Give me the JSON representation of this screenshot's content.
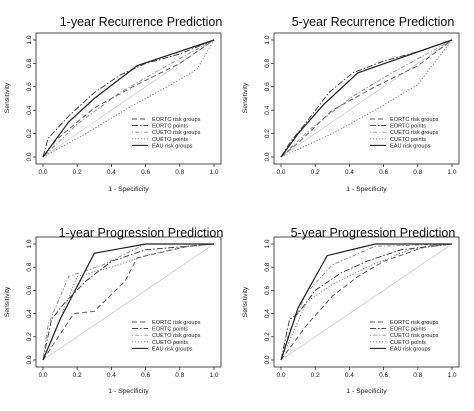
{
  "chart_data": [
    {
      "type": "line",
      "title": "1-year Recurrence Prediction",
      "xlabel": "1 - Specificity",
      "ylabel": "Sensitivity",
      "xlim": [
        0,
        1
      ],
      "ylim": [
        0,
        1
      ],
      "ticks": [
        "0.0",
        "0.2",
        "0.4",
        "0.6",
        "0.8",
        "1.0"
      ],
      "legend_position": "bottom-right",
      "diagonal_reference": true,
      "series": [
        {
          "name": "EORTC risk groups",
          "style": "dashed",
          "x": [
            0,
            0.08,
            0.3,
            0.55,
            0.8,
            1.0
          ],
          "y": [
            0,
            0.15,
            0.42,
            0.62,
            0.8,
            1.0
          ]
        },
        {
          "name": "EORTC points",
          "style": "dashdot",
          "x": [
            0,
            0.03,
            0.15,
            0.3,
            0.45,
            0.6,
            0.8,
            1.0
          ],
          "y": [
            0,
            0.16,
            0.35,
            0.55,
            0.7,
            0.8,
            0.88,
            1.0
          ]
        },
        {
          "name": "CUETO risk groups",
          "style": "dotdash",
          "x": [
            0,
            0.2,
            0.45,
            0.65,
            0.85,
            1.0
          ],
          "y": [
            0,
            0.28,
            0.55,
            0.72,
            0.88,
            1.0
          ]
        },
        {
          "name": "CUETO points",
          "style": "dotted",
          "x": [
            0,
            0.25,
            0.5,
            0.75,
            0.9,
            1.0
          ],
          "y": [
            0,
            0.2,
            0.42,
            0.62,
            0.75,
            1.0
          ]
        },
        {
          "name": "EAU risk groups",
          "style": "solid",
          "x": [
            0,
            0.15,
            0.3,
            0.55,
            1.0
          ],
          "y": [
            0,
            0.3,
            0.5,
            0.78,
            1.0
          ]
        }
      ]
    },
    {
      "type": "line",
      "title": "5-year Recurrence Prediction",
      "xlabel": "1 - Specificity",
      "ylabel": "Sensitivity",
      "xlim": [
        0,
        1
      ],
      "ylim": [
        0,
        1
      ],
      "ticks": [
        "0.0",
        "0.2",
        "0.4",
        "0.6",
        "0.8",
        "1.0"
      ],
      "legend_position": "bottom-right",
      "diagonal_reference": true,
      "series": [
        {
          "name": "EORTC risk groups",
          "style": "dashed",
          "x": [
            0,
            0.1,
            0.3,
            0.55,
            0.8,
            1.0
          ],
          "y": [
            0,
            0.12,
            0.4,
            0.6,
            0.78,
            1.0
          ]
        },
        {
          "name": "EORTC points",
          "style": "dashdot",
          "x": [
            0,
            0.05,
            0.15,
            0.28,
            0.42,
            0.6,
            0.8,
            1.0
          ],
          "y": [
            0,
            0.12,
            0.3,
            0.55,
            0.72,
            0.82,
            0.9,
            1.0
          ]
        },
        {
          "name": "CUETO risk groups",
          "style": "dotdash",
          "x": [
            0,
            0.18,
            0.42,
            0.65,
            0.85,
            1.0
          ],
          "y": [
            0,
            0.25,
            0.52,
            0.72,
            0.88,
            1.0
          ]
        },
        {
          "name": "CUETO points",
          "style": "dotted",
          "x": [
            0,
            0.3,
            0.55,
            0.8,
            1.0
          ],
          "y": [
            0,
            0.2,
            0.4,
            0.62,
            1.0
          ]
        },
        {
          "name": "EAU risk groups",
          "style": "solid",
          "x": [
            0,
            0.1,
            0.25,
            0.45,
            1.0
          ],
          "y": [
            0,
            0.2,
            0.45,
            0.72,
            1.0
          ]
        }
      ]
    },
    {
      "type": "line",
      "title": "1-year Progression Prediction",
      "xlabel": "1 - Specificity",
      "ylabel": "Sensitivity",
      "xlim": [
        0,
        1
      ],
      "ylim": [
        0,
        1
      ],
      "ticks": [
        "0.0",
        "0.2",
        "0.4",
        "0.6",
        "0.8",
        "1.0"
      ],
      "legend_position": "bottom-right",
      "diagonal_reference": true,
      "series": [
        {
          "name": "EORTC risk groups",
          "style": "dashed",
          "x": [
            0,
            0.18,
            0.3,
            0.48,
            0.55,
            0.85,
            1.0
          ],
          "y": [
            0,
            0.4,
            0.42,
            0.68,
            0.88,
            0.98,
            1.0
          ]
        },
        {
          "name": "EORTC points",
          "style": "dashdot",
          "x": [
            0,
            0.05,
            0.12,
            0.25,
            0.4,
            0.6,
            1.0
          ],
          "y": [
            0,
            0.35,
            0.48,
            0.68,
            0.85,
            0.95,
            1.0
          ]
        },
        {
          "name": "CUETO risk groups",
          "style": "dotdash",
          "x": [
            0,
            0.03,
            0.15,
            0.35,
            0.6,
            1.0
          ],
          "y": [
            0,
            0.3,
            0.72,
            0.82,
            1.0,
            1.0
          ]
        },
        {
          "name": "CUETO points",
          "style": "dotted",
          "x": [
            0,
            0.2,
            0.4,
            0.6,
            0.8,
            1.0
          ],
          "y": [
            0,
            0.72,
            0.8,
            0.9,
            0.97,
            1.0
          ]
        },
        {
          "name": "EAU risk groups",
          "style": "solid",
          "x": [
            0,
            0.1,
            0.3,
            0.6,
            1.0
          ],
          "y": [
            0,
            0.35,
            0.92,
            1.0,
            1.0
          ]
        }
      ]
    },
    {
      "type": "line",
      "title": "5-year Progression Prediction",
      "xlabel": "1 - Specificity",
      "ylabel": "Sensitivity",
      "xlim": [
        0,
        1
      ],
      "ylim": [
        0,
        1
      ],
      "ticks": [
        "0.0",
        "0.2",
        "0.4",
        "0.6",
        "0.8",
        "1.0"
      ],
      "legend_position": "bottom-right",
      "diagonal_reference": true,
      "series": [
        {
          "name": "EORTC risk groups",
          "style": "dashed",
          "x": [
            0,
            0.15,
            0.3,
            0.45,
            0.6,
            0.85,
            1.0
          ],
          "y": [
            0,
            0.3,
            0.55,
            0.72,
            0.85,
            0.98,
            1.0
          ]
        },
        {
          "name": "EORTC points",
          "style": "dashdot",
          "x": [
            0,
            0.05,
            0.1,
            0.2,
            0.35,
            0.5,
            0.7,
            1.0
          ],
          "y": [
            0,
            0.35,
            0.4,
            0.6,
            0.75,
            0.85,
            0.95,
            1.0
          ]
        },
        {
          "name": "CUETO risk groups",
          "style": "dotdash",
          "x": [
            0,
            0.05,
            0.15,
            0.3,
            0.55,
            1.0
          ],
          "y": [
            0,
            0.25,
            0.58,
            0.82,
            0.98,
            1.0
          ]
        },
        {
          "name": "CUETO points",
          "style": "dotted",
          "x": [
            0,
            0.15,
            0.3,
            0.5,
            0.75,
            1.0
          ],
          "y": [
            0,
            0.5,
            0.65,
            0.8,
            0.95,
            1.0
          ]
        },
        {
          "name": "EAU risk groups",
          "style": "solid",
          "x": [
            0,
            0.1,
            0.27,
            0.55,
            1.0
          ],
          "y": [
            0,
            0.45,
            0.9,
            1.0,
            1.0
          ]
        }
      ]
    }
  ]
}
